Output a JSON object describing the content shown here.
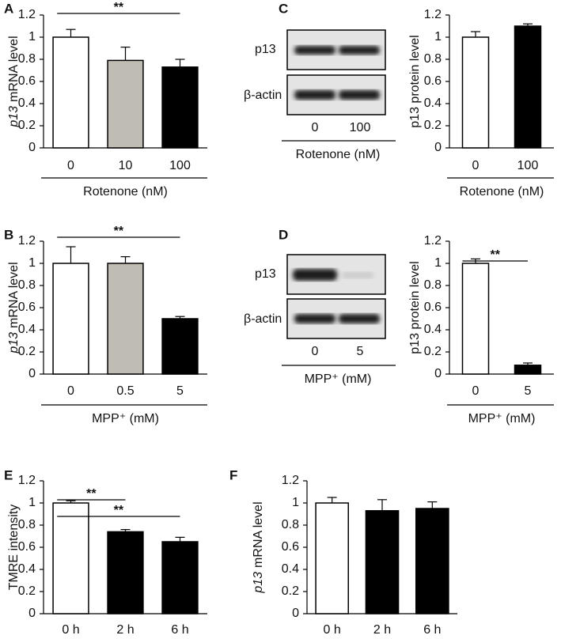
{
  "chart_data": [
    {
      "type": "bar",
      "panel": "A",
      "ylabel_italic": "p13",
      "ylabel": "mRNA level",
      "xlabel": "Rotenone (nM)",
      "categories": [
        "0",
        "10",
        "100"
      ],
      "values": [
        1,
        0.79,
        0.73
      ],
      "errors": [
        0.07,
        0.12,
        0.07
      ],
      "colors": [
        "#ffffff",
        "#bfbcb4",
        "#000000"
      ],
      "ylim": [
        0,
        1.2
      ],
      "yticks": [
        0,
        0.2,
        0.4,
        0.6,
        0.8,
        1,
        1.2
      ],
      "significance": [
        {
          "from": "0",
          "to": "100",
          "label": "**"
        }
      ]
    },
    {
      "type": "bar",
      "ylabel": "p13 protein level",
      "xlabel": "Rotenone (nM)",
      "categories": [
        "0",
        "100"
      ],
      "values": [
        1,
        1.1
      ],
      "errors": [
        0.05,
        0.02
      ],
      "colors": [
        "#ffffff",
        "#000000"
      ],
      "ylim": [
        0,
        1.2
      ],
      "yticks": [
        0,
        0.2,
        0.4,
        0.6,
        0.8,
        1,
        1.2
      ]
    },
    {
      "type": "bar",
      "panel": "B",
      "ylabel_italic": "p13",
      "ylabel": "mRNA level",
      "xlabel": "MPP⁺ (mM)",
      "categories": [
        "0",
        "0.5",
        "5"
      ],
      "values": [
        1,
        1,
        0.5
      ],
      "errors": [
        0.15,
        0.06,
        0.02
      ],
      "colors": [
        "#ffffff",
        "#bfbcb4",
        "#000000"
      ],
      "ylim": [
        0,
        1.2
      ],
      "yticks": [
        0,
        0.2,
        0.4,
        0.6,
        0.8,
        1,
        1.2
      ],
      "significance": [
        {
          "from": "0",
          "to": "5",
          "label": "**"
        }
      ]
    },
    {
      "type": "bar",
      "ylabel": "p13 protein level",
      "xlabel": "MPP⁺ (mM)",
      "categories": [
        "0",
        "5"
      ],
      "values": [
        1,
        0.08
      ],
      "errors": [
        0.04,
        0.02
      ],
      "colors": [
        "#ffffff",
        "#000000"
      ],
      "ylim": [
        0,
        1.2
      ],
      "yticks": [
        0,
        0.2,
        0.4,
        0.6,
        0.8,
        1,
        1.2
      ],
      "significance": [
        {
          "from": "0",
          "to": "5",
          "label": "**"
        }
      ]
    },
    {
      "type": "bar",
      "panel": "E",
      "ylabel": "TMRE intensity",
      "categories": [
        "0 h",
        "2 h",
        "6 h"
      ],
      "values": [
        1,
        0.74,
        0.65
      ],
      "errors": [
        0.02,
        0.02,
        0.04
      ],
      "colors": [
        "#ffffff",
        "#000000",
        "#000000"
      ],
      "ylim": [
        0,
        1.2
      ],
      "yticks": [
        0,
        0.2,
        0.4,
        0.6,
        0.8,
        1,
        1.2
      ],
      "significance": [
        {
          "from": "0 h",
          "to": "2 h",
          "label": "**"
        },
        {
          "from": "0 h",
          "to": "6 h",
          "label": "**"
        }
      ]
    },
    {
      "type": "bar",
      "panel": "F",
      "ylabel_italic": "p13",
      "ylabel": "mRNA level",
      "categories": [
        "0 h",
        "2 h",
        "6 h"
      ],
      "values": [
        1,
        0.93,
        0.95
      ],
      "errors": [
        0.05,
        0.1,
        0.06
      ],
      "colors": [
        "#ffffff",
        "#000000",
        "#000000"
      ],
      "ylim": [
        0,
        1.2
      ],
      "yticks": [
        0,
        0.2,
        0.4,
        0.6,
        0.8,
        1,
        1.2
      ]
    }
  ],
  "blots": [
    {
      "panel": "C",
      "rows": [
        "p13",
        "β-actin"
      ],
      "lanes": [
        "0",
        "100"
      ],
      "xlabel": "Rotenone (nM)"
    },
    {
      "panel": "D",
      "rows": [
        "p13",
        "β-actin"
      ],
      "lanes": [
        "0",
        "5"
      ],
      "xlabel": "MPP⁺ (mM)"
    }
  ]
}
